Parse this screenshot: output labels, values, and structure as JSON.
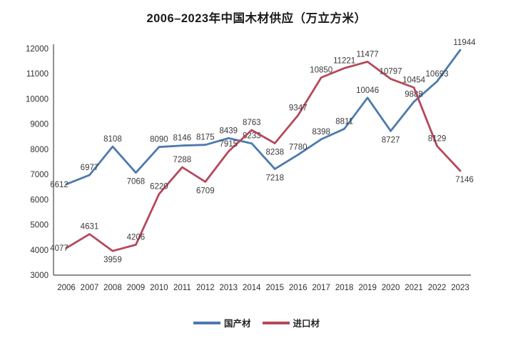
{
  "chart_data": {
    "type": "line",
    "title": "2006–2023年中国木材供应（万立方米）",
    "categories": [
      "2006",
      "2007",
      "2008",
      "2009",
      "2010",
      "2011",
      "2012",
      "2013",
      "2014",
      "2015",
      "2016",
      "2017",
      "2018",
      "2019",
      "2020",
      "2021",
      "2022",
      "2023"
    ],
    "series": [
      {
        "name": "国产材",
        "color": "#4d7aad",
        "values": [
          6612,
          6977,
          8108,
          7068,
          8090,
          8146,
          8175,
          8439,
          8233,
          7218,
          7780,
          8398,
          8811,
          10046,
          8727,
          9888,
          10693,
          11944
        ]
      },
      {
        "name": "进口材",
        "color": "#b5495b",
        "values": [
          4077,
          4631,
          3959,
          4206,
          6220,
          7288,
          6709,
          7915,
          8763,
          8238,
          9347,
          10850,
          11221,
          11477,
          10797,
          10454,
          8129,
          7146
        ]
      }
    ],
    "ylim": [
      3000,
      12000
    ],
    "yticks": [
      3000,
      4000,
      5000,
      6000,
      7000,
      8000,
      9000,
      10000,
      11000,
      12000
    ],
    "grid": false,
    "legend_position": "bottom",
    "axis_color": "#4a4a4a",
    "label_color": "#3a3a3a"
  }
}
